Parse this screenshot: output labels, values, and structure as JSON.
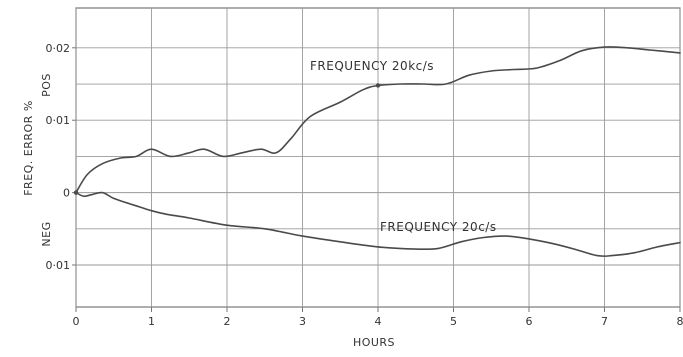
{
  "chart_data": {
    "type": "line",
    "xlabel": "HOURS",
    "ylabel": "FREQ. ERROR %",
    "ylabel_pos": "POS",
    "ylabel_neg": "NEG",
    "xlim": [
      0,
      8
    ],
    "ylim": [
      -0.0158,
      0.0255
    ],
    "grid": true,
    "x_ticks": [
      0,
      1,
      2,
      3,
      4,
      5,
      6,
      7,
      8
    ],
    "x_tick_labels": [
      "0",
      "1",
      "2",
      "3",
      "4",
      "5",
      "6",
      "7",
      "8"
    ],
    "y_ticks": [
      0.02,
      0.01,
      0,
      -0.01
    ],
    "y_tick_labels": [
      "0·02",
      "0·01",
      "0",
      "0·01"
    ],
    "y_grid": [
      0.02,
      0.015,
      0.01,
      0.005,
      0,
      -0.005,
      -0.01
    ],
    "annotations": [
      {
        "text": "FREQUENCY  20kc/s",
        "series": 0
      },
      {
        "text": "FREQUENCY  20c/s",
        "series": 1
      }
    ],
    "series": [
      {
        "name": "FREQUENCY 20kc/s",
        "x": [
          0,
          0.15,
          0.35,
          0.6,
          0.8,
          1.0,
          1.25,
          1.5,
          1.7,
          1.95,
          2.2,
          2.45,
          2.65,
          2.85,
          3.1,
          3.5,
          3.8,
          4.0,
          4.3,
          4.6,
          4.9,
          5.2,
          5.5,
          5.8,
          6.1,
          6.4,
          6.7,
          7.0,
          7.3,
          7.6,
          8.0
        ],
        "y": [
          0,
          0.0025,
          0.004,
          0.0048,
          0.005,
          0.006,
          0.005,
          0.0055,
          0.006,
          0.005,
          0.0055,
          0.006,
          0.0055,
          0.0075,
          0.0105,
          0.0125,
          0.0142,
          0.0148,
          0.015,
          0.015,
          0.015,
          0.0162,
          0.0168,
          0.017,
          0.0172,
          0.0182,
          0.0196,
          0.0201,
          0.02,
          0.0197,
          0.0193
        ]
      },
      {
        "name": "FREQUENCY 20c/s",
        "x": [
          0,
          0.1,
          0.2,
          0.35,
          0.5,
          0.7,
          0.85,
          1.0,
          1.2,
          1.5,
          2.0,
          2.5,
          3.0,
          3.5,
          4.0,
          4.5,
          4.8,
          5.1,
          5.4,
          5.7,
          6.0,
          6.3,
          6.6,
          6.9,
          7.1,
          7.4,
          7.7,
          8.0
        ],
        "y": [
          0,
          -0.0005,
          -0.0003,
          0,
          -0.0008,
          -0.0015,
          -0.002,
          -0.0025,
          -0.003,
          -0.0035,
          -0.0045,
          -0.005,
          -0.006,
          -0.0068,
          -0.0075,
          -0.0078,
          -0.0077,
          -0.0068,
          -0.0062,
          -0.006,
          -0.0064,
          -0.007,
          -0.0078,
          -0.0087,
          -0.0087,
          -0.0083,
          -0.0075,
          -0.0069
        ]
      }
    ]
  }
}
